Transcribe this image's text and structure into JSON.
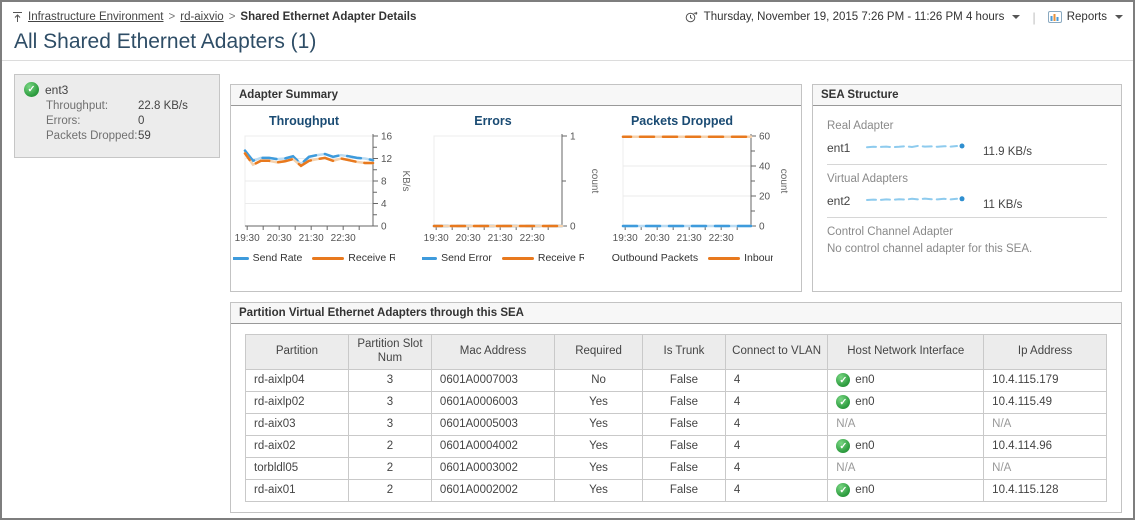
{
  "topbar": {
    "breadcrumb": {
      "items": [
        "Infrastructure Environment",
        "rd-aixvio"
      ],
      "current": "Shared Ethernet Adapter Details",
      "separator": ">"
    },
    "time_range": "Thursday, November 19, 2015 7:26 PM - 11:26 PM 4 hours",
    "reports_label": "Reports"
  },
  "page_title": "All Shared Ethernet Adapters (1)",
  "adapter_card": {
    "name": "ent3",
    "status": "ok",
    "metrics": [
      {
        "label": "Throughput:",
        "value": "22.8 KB/s"
      },
      {
        "label": "Errors:",
        "value": "0"
      },
      {
        "label": "Packets Dropped:",
        "value": "59"
      }
    ]
  },
  "adapter_summary": {
    "title": "Adapter Summary"
  },
  "chart_data": [
    {
      "type": "line",
      "title": "Throughput",
      "ylabel": "KB/s",
      "ylim": [
        0,
        16
      ],
      "yticks": [
        0,
        4,
        8,
        12,
        16
      ],
      "yminors": [
        2,
        6,
        10,
        14
      ],
      "x_ticks": [
        0.017,
        0.142,
        0.267,
        0.392,
        0.517,
        0.642,
        0.767,
        0.892
      ],
      "x_tick_labels": [
        "19:30",
        "",
        "20:30",
        "",
        "21:30",
        "",
        "22:30",
        ""
      ],
      "grid": true,
      "legend_position": "bottom",
      "series": [
        {
          "name": "Send Rate",
          "color": "#3e9bdc",
          "light": "#bcdcf2",
          "values": [
            13.4,
            11.6,
            12.1,
            12.1,
            11.9,
            12.0,
            12.4,
            11.0,
            12.3,
            12.6,
            12.8,
            12.3,
            12.6,
            12.4,
            12.1,
            12.0,
            11.7
          ]
        },
        {
          "name": "Receive Rate",
          "color": "#e8791e",
          "light": "#f6d2ad",
          "values": [
            12.9,
            10.9,
            11.6,
            11.6,
            11.3,
            11.5,
            11.9,
            10.7,
            11.6,
            11.9,
            12.1,
            11.6,
            12.0,
            11.7,
            11.4,
            11.2,
            11.2
          ]
        }
      ]
    },
    {
      "type": "line",
      "title": "Errors",
      "ylabel": "count",
      "ylim": [
        0,
        1
      ],
      "yticks": [
        0,
        1
      ],
      "yminors": [
        0.5
      ],
      "x_ticks": [
        0.017,
        0.142,
        0.267,
        0.392,
        0.517,
        0.642,
        0.767,
        0.892
      ],
      "x_tick_labels": [
        "19:30",
        "",
        "20:30",
        "",
        "21:30",
        "",
        "22:30",
        ""
      ],
      "grid": true,
      "legend_position": "bottom",
      "series": [
        {
          "name": "Send Error",
          "color": "#3e9bdc",
          "light": "#bcdcf2",
          "values": [
            0,
            0,
            0,
            0,
            0,
            0,
            0,
            0,
            0,
            0,
            0,
            0,
            0,
            0,
            0,
            0,
            0
          ]
        },
        {
          "name": "Receive Rate",
          "color": "#e8791e",
          "light": "#f6d2ad",
          "values": [
            0,
            0,
            0,
            0,
            0,
            0,
            0,
            0,
            0,
            0,
            0,
            0,
            0,
            0,
            0,
            0,
            0
          ]
        }
      ]
    },
    {
      "type": "line",
      "title": "Packets Dropped",
      "ylabel": "count",
      "ylim": [
        0,
        60
      ],
      "yticks": [
        0,
        20,
        40,
        60
      ],
      "yminors": [
        10,
        30,
        50
      ],
      "x_ticks": [
        0.017,
        0.142,
        0.267,
        0.392,
        0.517,
        0.642,
        0.767,
        0.892
      ],
      "x_tick_labels": [
        "19:30",
        "",
        "20:30",
        "",
        "21:30",
        "",
        "22:30",
        ""
      ],
      "grid": true,
      "legend_position": "bottom",
      "series": [
        {
          "name": "Outbound Packets",
          "color": "#3e9bdc",
          "light": "#bcdcf2",
          "values": [
            0,
            0,
            0,
            0,
            0,
            0,
            0,
            0,
            0,
            0,
            0,
            0,
            0,
            0,
            0,
            0,
            0
          ]
        },
        {
          "name": "Inbound Pack",
          "color": "#e8791e",
          "light": "#f6d2ad",
          "values": [
            59.5,
            59.5,
            59.5,
            59.5,
            59.5,
            59.5,
            59.5,
            59.5,
            59.5,
            59.5,
            59.5,
            59.5,
            59.5,
            59.5,
            59.5,
            59.5,
            59.5
          ]
        }
      ]
    }
  ],
  "sea_structure": {
    "title": "SEA Structure",
    "sections": [
      {
        "label": "Real Adapter",
        "name": "ent1",
        "value": "11.9 KB/s",
        "sparkline": {
          "color": "#8ecbee",
          "dot": "#2f8fd0",
          "values": [
            0.38,
            0.42,
            0.4,
            0.44,
            0.38,
            0.42,
            0.48,
            0.4,
            0.52,
            0.44,
            0.46,
            0.42,
            0.48,
            0.44,
            0.5
          ]
        }
      },
      {
        "label": "Virtual Adapters",
        "name": "ent2",
        "value": "11 KB/s",
        "sparkline": {
          "color": "#8ecbee",
          "dot": "#2f8fd0",
          "values": [
            0.4,
            0.44,
            0.4,
            0.46,
            0.42,
            0.48,
            0.44,
            0.52,
            0.46,
            0.54,
            0.48,
            0.46,
            0.52,
            0.46,
            0.52
          ]
        }
      },
      {
        "label": "Control Channel Adapter",
        "text": "No control channel adapter for this SEA."
      }
    ]
  },
  "partition_table": {
    "title": "Partition Virtual Ethernet Adapters through this SEA",
    "columns": [
      "Partition",
      "Partition Slot Num",
      "Mac Address",
      "Required",
      "Is Trunk",
      "Connect to VLAN",
      "Host Network Interface",
      "Ip Address"
    ],
    "rows": [
      {
        "partition": "rd-aixlp04",
        "slot": "3",
        "mac": "0601A0007003",
        "required": "No",
        "is_trunk": "False",
        "vlan": "4",
        "host_if": "en0",
        "host_if_ok": true,
        "ip": "10.4.115.179"
      },
      {
        "partition": "rd-aixlp02",
        "slot": "3",
        "mac": "0601A0006003",
        "required": "Yes",
        "is_trunk": "False",
        "vlan": "4",
        "host_if": "en0",
        "host_if_ok": true,
        "ip": "10.4.115.49"
      },
      {
        "partition": "rd-aix03",
        "slot": "3",
        "mac": "0601A0005003",
        "required": "Yes",
        "is_trunk": "False",
        "vlan": "4",
        "host_if": "N/A",
        "host_if_ok": false,
        "ip": "N/A"
      },
      {
        "partition": "rd-aix02",
        "slot": "2",
        "mac": "0601A0004002",
        "required": "Yes",
        "is_trunk": "False",
        "vlan": "4",
        "host_if": "en0",
        "host_if_ok": true,
        "ip": "10.4.114.96"
      },
      {
        "partition": "torbldl05",
        "slot": "2",
        "mac": "0601A0003002",
        "required": "Yes",
        "is_trunk": "False",
        "vlan": "4",
        "host_if": "N/A",
        "host_if_ok": false,
        "ip": "N/A"
      },
      {
        "partition": "rd-aix01",
        "slot": "2",
        "mac": "0601A0002002",
        "required": "Yes",
        "is_trunk": "False",
        "vlan": "4",
        "host_if": "en0",
        "host_if_ok": true,
        "ip": "10.4.115.128"
      }
    ]
  },
  "colors": {
    "series_blue": "#3e9bdc",
    "series_orange": "#e8791e",
    "status_green": "#2f9e41",
    "chart_title": "#1a4b73",
    "page_title": "#2e4d66"
  }
}
